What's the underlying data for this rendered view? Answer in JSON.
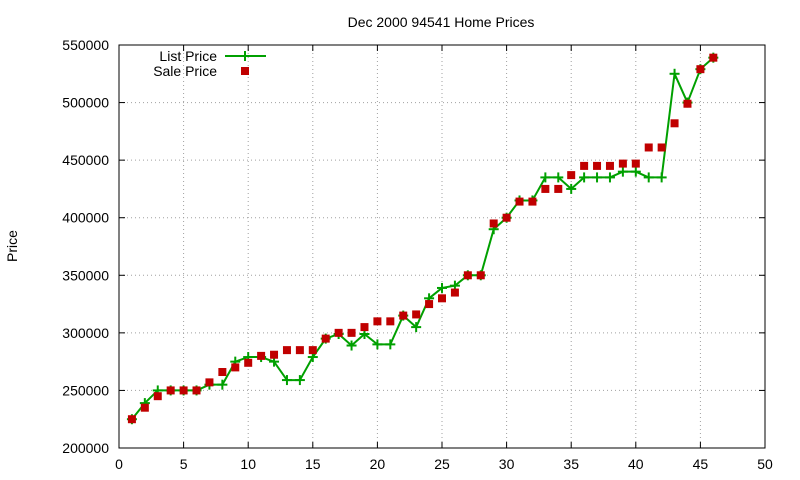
{
  "chart_data": {
    "type": "line",
    "title": "Dec 2000 94541 Home Prices",
    "xlabel": "",
    "ylabel": "Price",
    "xlim": [
      0,
      50
    ],
    "ylim": [
      200000,
      550000
    ],
    "xticks": [
      "0",
      "5",
      "10",
      "15",
      "20",
      "25",
      "30",
      "35",
      "40",
      "45",
      "50"
    ],
    "yticks": [
      "200000",
      "250000",
      "300000",
      "350000",
      "400000",
      "450000",
      "500000",
      "550000"
    ],
    "grid": true,
    "legend_position": "top-left",
    "series": [
      {
        "name": "List Price",
        "style": "line-plus",
        "color": "#00a000",
        "x": [
          1,
          2,
          3,
          4,
          5,
          6,
          7,
          8,
          9,
          10,
          11,
          12,
          13,
          14,
          15,
          16,
          17,
          18,
          19,
          20,
          21,
          22,
          23,
          24,
          25,
          26,
          27,
          28,
          29,
          30,
          31,
          32,
          33,
          34,
          35,
          36,
          37,
          38,
          39,
          40,
          41,
          42,
          43,
          44,
          45,
          46
        ],
        "y": [
          225000,
          239000,
          250000,
          250000,
          250000,
          250000,
          255000,
          255000,
          275000,
          279000,
          279000,
          275000,
          259000,
          259000,
          279000,
          295000,
          299000,
          289000,
          299000,
          290000,
          290000,
          315000,
          305000,
          330000,
          339000,
          341000,
          350000,
          350000,
          390000,
          400000,
          415000,
          415000,
          435000,
          435000,
          425000,
          435000,
          435000,
          435000,
          440000,
          440000,
          435000,
          435000,
          525000,
          500000,
          529000,
          539000
        ]
      },
      {
        "name": "Sale Price",
        "style": "square-points",
        "color": "#c00000",
        "x": [
          1,
          2,
          3,
          4,
          5,
          6,
          7,
          8,
          9,
          10,
          11,
          12,
          13,
          14,
          15,
          16,
          17,
          18,
          19,
          20,
          21,
          22,
          23,
          24,
          25,
          26,
          27,
          28,
          29,
          30,
          31,
          32,
          33,
          34,
          35,
          36,
          37,
          38,
          39,
          40,
          41,
          42,
          43,
          44,
          45,
          46
        ],
        "y": [
          225000,
          235000,
          245000,
          250000,
          250000,
          250000,
          257000,
          266000,
          270000,
          274000,
          280000,
          281000,
          285000,
          285000,
          285000,
          295000,
          300000,
          300000,
          305000,
          310000,
          310000,
          315000,
          316000,
          325000,
          330000,
          335000,
          350000,
          350000,
          395000,
          400000,
          414000,
          414000,
          425000,
          425000,
          437000,
          445000,
          445000,
          445000,
          447000,
          447000,
          461000,
          461000,
          482000,
          499000,
          529000,
          539000
        ]
      }
    ]
  }
}
